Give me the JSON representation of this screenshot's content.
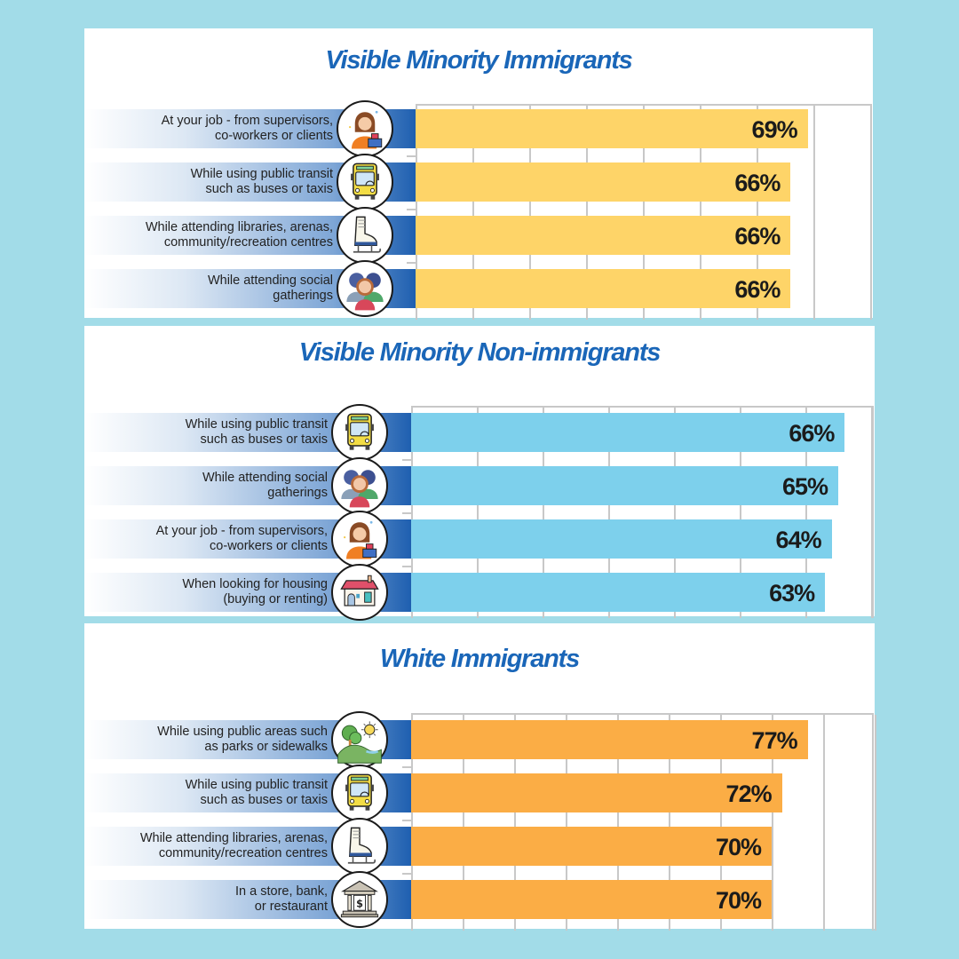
{
  "chart_data": [
    {
      "type": "bar",
      "orientation": "horizontal",
      "title": "Visible Minority Immigrants",
      "bar_color": "#fed468",
      "xlim": [
        0,
        80
      ],
      "grid": true,
      "categories": [
        {
          "line1": "At your job - from supervisors,",
          "line2": "co-workers or clients",
          "icon": "worker-cashier-icon"
        },
        {
          "line1": "While using public transit",
          "line2": "such as buses or taxis",
          "icon": "bus-icon"
        },
        {
          "line1": "While attending libraries, arenas,",
          "line2": "community/recreation centres",
          "icon": "ice-skate-icon"
        },
        {
          "line1": "While attending social",
          "line2": "gatherings",
          "icon": "people-group-icon"
        }
      ],
      "values": [
        69,
        66,
        66,
        66
      ],
      "labels": [
        "69%",
        "66%",
        "66%",
        "66%"
      ]
    },
    {
      "type": "bar",
      "orientation": "horizontal",
      "title": "Visible Minority Non-immigrants",
      "bar_color": "#7dd0ec",
      "xlim": [
        0,
        70
      ],
      "grid": true,
      "categories": [
        {
          "line1": "While using public transit",
          "line2": "such as buses or taxis",
          "icon": "bus-icon"
        },
        {
          "line1": "While attending social",
          "line2": "gatherings",
          "icon": "people-group-icon"
        },
        {
          "line1": "At your job - from supervisors,",
          "line2": "co-workers or clients",
          "icon": "worker-cashier-icon"
        },
        {
          "line1": "When looking for housing",
          "line2": "(buying or renting)",
          "icon": "house-icon"
        }
      ],
      "values": [
        66,
        65,
        64,
        63
      ],
      "labels": [
        "66%",
        "65%",
        "64%",
        "63%"
      ]
    },
    {
      "type": "bar",
      "orientation": "horizontal",
      "title": "White Immigrants",
      "bar_color": "#fbad45",
      "xlim": [
        0,
        90
      ],
      "grid": true,
      "categories": [
        {
          "line1": "While using public areas such",
          "line2": "as parks or sidewalks",
          "icon": "park-icon"
        },
        {
          "line1": "While using public transit",
          "line2": "such as buses or taxis",
          "icon": "bus-icon"
        },
        {
          "line1": "While attending libraries, arenas,",
          "line2": "community/recreation centres",
          "icon": "ice-skate-icon"
        },
        {
          "line1": "In a store, bank,",
          "line2": "or  restaurant",
          "icon": "bank-icon"
        }
      ],
      "values": [
        77,
        72,
        70,
        70
      ],
      "labels": [
        "77%",
        "72%",
        "70%",
        "70%"
      ]
    }
  ],
  "colors": {
    "background": "#a2dce8",
    "title": "#1a66b8",
    "banner_dark": "#1e5fb0"
  }
}
